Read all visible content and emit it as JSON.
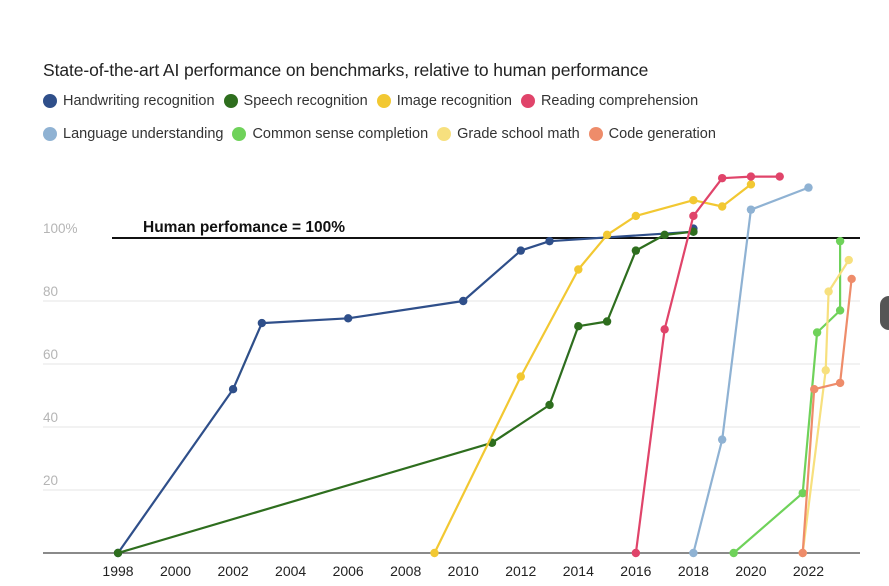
{
  "title": "State-of-the-art AI performance on benchmarks, relative to human performance",
  "legend": [
    {
      "name": "Handwriting recognition",
      "color": "#2f4f8a"
    },
    {
      "name": "Speech recognition",
      "color": "#2e6e1e"
    },
    {
      "name": "Image recognition",
      "color": "#f2c832"
    },
    {
      "name": "Reading comprehension",
      "color": "#e0446a"
    },
    {
      "name": "Language understanding",
      "color": "#8fb2d3"
    },
    {
      "name": "Common sense completion",
      "color": "#6fd25a"
    },
    {
      "name": "Grade school math",
      "color": "#f7e07e"
    },
    {
      "name": "Code generation",
      "color": "#ee8c6a"
    }
  ],
  "chart_data": {
    "type": "line",
    "title": "State-of-the-art AI performance on benchmarks, relative to human performance",
    "xlabel": "",
    "ylabel": "",
    "xlim": [
      1998,
      2023.6
    ],
    "ylim": [
      0,
      120
    ],
    "x_ticks": [
      "1998",
      "2000",
      "2002",
      "2004",
      "2006",
      "2008",
      "2010",
      "2012",
      "2014",
      "2016",
      "2018",
      "2020",
      "2022"
    ],
    "y_ticks": [
      "20",
      "40",
      "60",
      "80",
      "100%"
    ],
    "grid": true,
    "reference_line": {
      "y": 100,
      "label": "Human perfomance = 100%"
    },
    "series": [
      {
        "name": "Handwriting recognition",
        "color": "#2f4f8a",
        "points": [
          [
            1998,
            0
          ],
          [
            2002,
            52
          ],
          [
            2003,
            73
          ],
          [
            2006,
            74.5
          ],
          [
            2010,
            80
          ],
          [
            2012,
            96
          ],
          [
            2013,
            99
          ],
          [
            2018,
            102
          ],
          [
            2018,
            103
          ]
        ]
      },
      {
        "name": "Speech recognition",
        "color": "#2e6e1e",
        "points": [
          [
            1998,
            0
          ],
          [
            2011,
            35
          ],
          [
            2013,
            47
          ],
          [
            2014,
            72
          ],
          [
            2015,
            73.5
          ],
          [
            2016,
            96
          ],
          [
            2017,
            101
          ],
          [
            2018,
            102
          ]
        ]
      },
      {
        "name": "Image recognition",
        "color": "#f2c832",
        "points": [
          [
            2009,
            0
          ],
          [
            2012,
            56
          ],
          [
            2014,
            90
          ],
          [
            2015,
            101
          ],
          [
            2016,
            107
          ],
          [
            2018,
            112
          ],
          [
            2019,
            110
          ],
          [
            2020,
            117
          ]
        ]
      },
      {
        "name": "Reading comprehension",
        "color": "#e0446a",
        "points": [
          [
            2016,
            0
          ],
          [
            2017,
            71
          ],
          [
            2018,
            107
          ],
          [
            2019,
            119
          ],
          [
            2020,
            119.5
          ],
          [
            2021,
            119.5
          ]
        ]
      },
      {
        "name": "Language understanding",
        "color": "#8fb2d3",
        "points": [
          [
            2018,
            0
          ],
          [
            2019,
            36
          ],
          [
            2020,
            109
          ],
          [
            2022,
            116
          ]
        ]
      },
      {
        "name": "Common sense completion",
        "color": "#6fd25a",
        "points": [
          [
            2019.4,
            0
          ],
          [
            2021.8,
            19
          ],
          [
            2022.3,
            70
          ],
          [
            2023.1,
            77
          ],
          [
            2023.1,
            99
          ]
        ]
      },
      {
        "name": "Grade school math",
        "color": "#f7e07e",
        "points": [
          [
            2021.8,
            0
          ],
          [
            2022.6,
            58
          ],
          [
            2022.7,
            83
          ],
          [
            2023.4,
            93
          ]
        ]
      },
      {
        "name": "Code generation",
        "color": "#ee8c6a",
        "points": [
          [
            2021.8,
            0
          ],
          [
            2022.2,
            52
          ],
          [
            2023.1,
            54
          ],
          [
            2023.5,
            87
          ]
        ]
      }
    ]
  }
}
